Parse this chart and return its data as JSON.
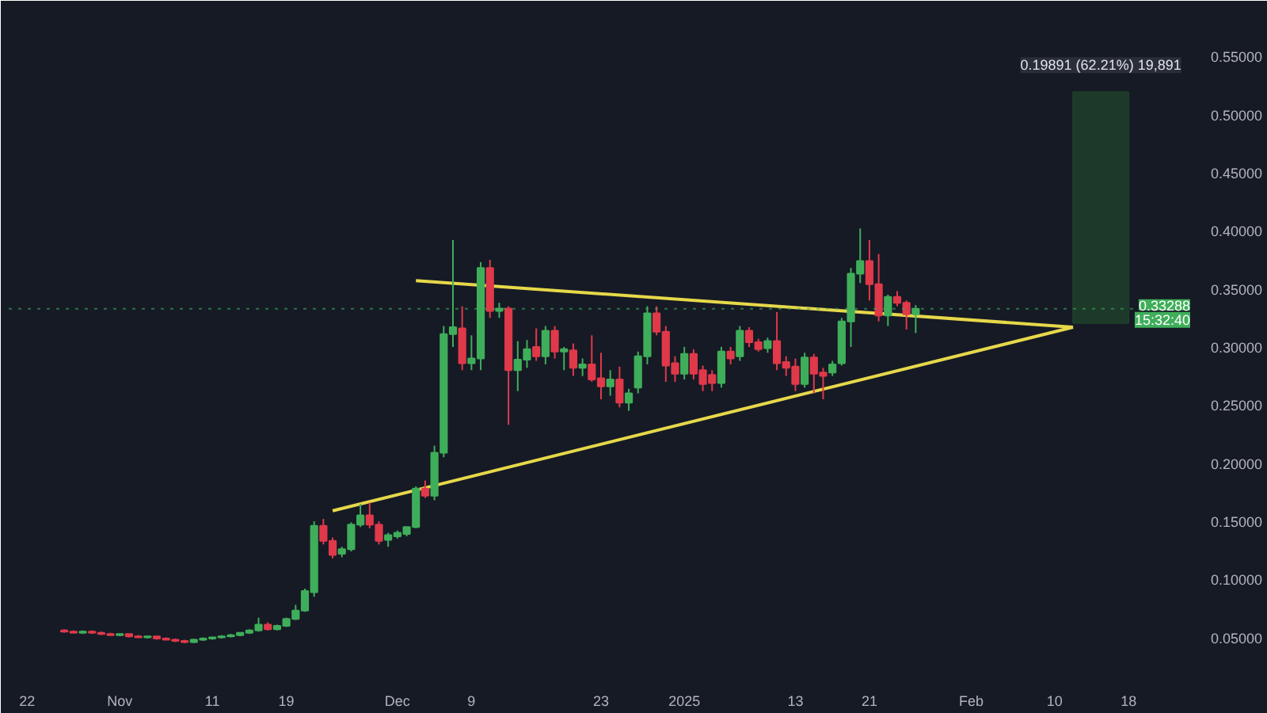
{
  "chart_data": {
    "type": "candlestick",
    "x": [
      "2024-10-26",
      "2024-10-27",
      "2024-10-28",
      "2024-10-29",
      "2024-10-30",
      "2024-10-31",
      "2024-11-01",
      "2024-11-02",
      "2024-11-03",
      "2024-11-04",
      "2024-11-05",
      "2024-11-06",
      "2024-11-07",
      "2024-11-08",
      "2024-11-09",
      "2024-11-10",
      "2024-11-11",
      "2024-11-12",
      "2024-11-13",
      "2024-11-14",
      "2024-11-15",
      "2024-11-16",
      "2024-11-17",
      "2024-11-18",
      "2024-11-19",
      "2024-11-20",
      "2024-11-21",
      "2024-11-22",
      "2024-11-23",
      "2024-11-24",
      "2024-11-25",
      "2024-11-26",
      "2024-11-27",
      "2024-11-28",
      "2024-11-29",
      "2024-11-30",
      "2024-12-01",
      "2024-12-02",
      "2024-12-03",
      "2024-12-04",
      "2024-12-05",
      "2024-12-06",
      "2024-12-07",
      "2024-12-08",
      "2024-12-09",
      "2024-12-10",
      "2024-12-11",
      "2024-12-12",
      "2024-12-13",
      "2024-12-14",
      "2024-12-15",
      "2024-12-16",
      "2024-12-17",
      "2024-12-18",
      "2024-12-19",
      "2024-12-20",
      "2024-12-21",
      "2024-12-22",
      "2024-12-23",
      "2024-12-24",
      "2024-12-25",
      "2024-12-26",
      "2024-12-27",
      "2024-12-28",
      "2024-12-29",
      "2024-12-30",
      "2024-12-31",
      "2025-01-01",
      "2025-01-02",
      "2025-01-03",
      "2025-01-04",
      "2025-01-05",
      "2025-01-06",
      "2025-01-07",
      "2025-01-08",
      "2025-01-09",
      "2025-01-10",
      "2025-01-11",
      "2025-01-12",
      "2025-01-13",
      "2025-01-14",
      "2025-01-15",
      "2025-01-16",
      "2025-01-17",
      "2025-01-18",
      "2025-01-19",
      "2025-01-20",
      "2025-01-21",
      "2025-01-22",
      "2025-01-23",
      "2025-01-24",
      "2025-01-25",
      "2025-01-26"
    ],
    "ohlc": [
      [
        0.056,
        0.057,
        0.054,
        0.055
      ],
      [
        0.055,
        0.056,
        0.054,
        0.054
      ],
      [
        0.054,
        0.056,
        0.053,
        0.055
      ],
      [
        0.055,
        0.056,
        0.053,
        0.054
      ],
      [
        0.054,
        0.055,
        0.052,
        0.053
      ],
      [
        0.053,
        0.054,
        0.052,
        0.052
      ],
      [
        0.052,
        0.053,
        0.051,
        0.053
      ],
      [
        0.053,
        0.053,
        0.05,
        0.051
      ],
      [
        0.051,
        0.052,
        0.05,
        0.05
      ],
      [
        0.05,
        0.051,
        0.049,
        0.051
      ],
      [
        0.051,
        0.051,
        0.048,
        0.049
      ],
      [
        0.049,
        0.05,
        0.048,
        0.048
      ],
      [
        0.048,
        0.049,
        0.046,
        0.047
      ],
      [
        0.047,
        0.048,
        0.045,
        0.046
      ],
      [
        0.046,
        0.049,
        0.045,
        0.048
      ],
      [
        0.048,
        0.05,
        0.047,
        0.049
      ],
      [
        0.049,
        0.05,
        0.048,
        0.05
      ],
      [
        0.05,
        0.052,
        0.049,
        0.051
      ],
      [
        0.051,
        0.053,
        0.05,
        0.052
      ],
      [
        0.052,
        0.054,
        0.051,
        0.054
      ],
      [
        0.054,
        0.057,
        0.053,
        0.056
      ],
      [
        0.056,
        0.067,
        0.055,
        0.061
      ],
      [
        0.061,
        0.063,
        0.056,
        0.057
      ],
      [
        0.057,
        0.061,
        0.056,
        0.06
      ],
      [
        0.06,
        0.067,
        0.059,
        0.066
      ],
      [
        0.066,
        0.078,
        0.065,
        0.073
      ],
      [
        0.073,
        0.092,
        0.072,
        0.09
      ],
      [
        0.089,
        0.15,
        0.085,
        0.146
      ],
      [
        0.146,
        0.152,
        0.13,
        0.133
      ],
      [
        0.133,
        0.136,
        0.118,
        0.121
      ],
      [
        0.122,
        0.128,
        0.119,
        0.126
      ],
      [
        0.126,
        0.149,
        0.124,
        0.147
      ],
      [
        0.147,
        0.165,
        0.145,
        0.155
      ],
      [
        0.155,
        0.166,
        0.144,
        0.147
      ],
      [
        0.147,
        0.15,
        0.13,
        0.133
      ],
      [
        0.134,
        0.14,
        0.128,
        0.138
      ],
      [
        0.137,
        0.142,
        0.135,
        0.14
      ],
      [
        0.139,
        0.145,
        0.137,
        0.145
      ],
      [
        0.145,
        0.18,
        0.144,
        0.178
      ],
      [
        0.178,
        0.185,
        0.17,
        0.172
      ],
      [
        0.172,
        0.215,
        0.168,
        0.209
      ],
      [
        0.209,
        0.318,
        0.205,
        0.311
      ],
      [
        0.311,
        0.392,
        0.3,
        0.317
      ],
      [
        0.316,
        0.335,
        0.28,
        0.286
      ],
      [
        0.286,
        0.31,
        0.28,
        0.29
      ],
      [
        0.29,
        0.373,
        0.28,
        0.368
      ],
      [
        0.368,
        0.375,
        0.325,
        0.331
      ],
      [
        0.331,
        0.338,
        0.325,
        0.333
      ],
      [
        0.333,
        0.335,
        0.233,
        0.28
      ],
      [
        0.28,
        0.305,
        0.262,
        0.289
      ],
      [
        0.289,
        0.306,
        0.282,
        0.298
      ],
      [
        0.3,
        0.316,
        0.288,
        0.292
      ],
      [
        0.292,
        0.318,
        0.285,
        0.314
      ],
      [
        0.314,
        0.318,
        0.29,
        0.296
      ],
      [
        0.296,
        0.3,
        0.28,
        0.298
      ],
      [
        0.297,
        0.303,
        0.275,
        0.282
      ],
      [
        0.282,
        0.29,
        0.275,
        0.285
      ],
      [
        0.285,
        0.31,
        0.27,
        0.272
      ],
      [
        0.273,
        0.295,
        0.255,
        0.266
      ],
      [
        0.266,
        0.28,
        0.258,
        0.272
      ],
      [
        0.272,
        0.283,
        0.248,
        0.252
      ],
      [
        0.252,
        0.264,
        0.245,
        0.26
      ],
      [
        0.265,
        0.296,
        0.26,
        0.292
      ],
      [
        0.292,
        0.335,
        0.285,
        0.329
      ],
      [
        0.329,
        0.335,
        0.31,
        0.313
      ],
      [
        0.313,
        0.318,
        0.27,
        0.284
      ],
      [
        0.286,
        0.292,
        0.27,
        0.277
      ],
      [
        0.277,
        0.3,
        0.272,
        0.294
      ],
      [
        0.294,
        0.298,
        0.272,
        0.277
      ],
      [
        0.28,
        0.284,
        0.262,
        0.268
      ],
      [
        0.276,
        0.28,
        0.262,
        0.269
      ],
      [
        0.269,
        0.3,
        0.265,
        0.296
      ],
      [
        0.296,
        0.3,
        0.285,
        0.29
      ],
      [
        0.292,
        0.318,
        0.288,
        0.314
      ],
      [
        0.314,
        0.317,
        0.3,
        0.304
      ],
      [
        0.304,
        0.307,
        0.296,
        0.298
      ],
      [
        0.299,
        0.308,
        0.295,
        0.305
      ],
      [
        0.305,
        0.33,
        0.28,
        0.286
      ],
      [
        0.287,
        0.292,
        0.275,
        0.282
      ],
      [
        0.283,
        0.29,
        0.262,
        0.268
      ],
      [
        0.268,
        0.295,
        0.265,
        0.291
      ],
      [
        0.291,
        0.294,
        0.26,
        0.277
      ],
      [
        0.278,
        0.282,
        0.255,
        0.275
      ],
      [
        0.278,
        0.288,
        0.275,
        0.285
      ],
      [
        0.286,
        0.325,
        0.284,
        0.322
      ],
      [
        0.322,
        0.368,
        0.3,
        0.363
      ],
      [
        0.363,
        0.402,
        0.355,
        0.374
      ],
      [
        0.374,
        0.392,
        0.34,
        0.354
      ],
      [
        0.354,
        0.38,
        0.322,
        0.327
      ],
      [
        0.327,
        0.345,
        0.318,
        0.343
      ],
      [
        0.343,
        0.348,
        0.335,
        0.338
      ],
      [
        0.338,
        0.34,
        0.315,
        0.328
      ],
      [
        0.328,
        0.336,
        0.312,
        0.33288
      ]
    ],
    "colors": [
      "#e0394a",
      "#e0394a",
      "#3fae5a",
      "#e0394a",
      "#e0394a",
      "#e0394a",
      "#3fae5a",
      "#e0394a",
      "#e0394a",
      "#3fae5a",
      "#e0394a",
      "#e0394a",
      "#e0394a",
      "#e0394a",
      "#3fae5a",
      "#3fae5a",
      "#3fae5a",
      "#3fae5a",
      "#3fae5a",
      "#3fae5a",
      "#3fae5a",
      "#3fae5a",
      "#e0394a",
      "#3fae5a",
      "#3fae5a",
      "#3fae5a",
      "#3fae5a",
      "#3fae5a",
      "#e0394a",
      "#e0394a",
      "#3fae5a",
      "#3fae5a",
      "#3fae5a",
      "#e0394a",
      "#e0394a",
      "#3fae5a",
      "#3fae5a",
      "#3fae5a",
      "#3fae5a",
      "#e0394a",
      "#3fae5a",
      "#3fae5a",
      "#3fae5a",
      "#e0394a",
      "#3fae5a",
      "#3fae5a",
      "#e0394a",
      "#3fae5a",
      "#e0394a",
      "#3fae5a",
      "#3fae5a",
      "#e0394a",
      "#3fae5a",
      "#e0394a",
      "#3fae5a",
      "#e0394a",
      "#3fae5a",
      "#e0394a",
      "#e0394a",
      "#3fae5a",
      "#e0394a",
      "#3fae5a",
      "#3fae5a",
      "#3fae5a",
      "#e0394a",
      "#e0394a",
      "#e0394a",
      "#3fae5a",
      "#e0394a",
      "#e0394a",
      "#e0394a",
      "#3fae5a",
      "#e0394a",
      "#3fae5a",
      "#e0394a",
      "#e0394a",
      "#3fae5a",
      "#e0394a",
      "#e0394a",
      "#e0394a",
      "#3fae5a",
      "#e0394a",
      "#e0394a",
      "#3fae5a",
      "#3fae5a",
      "#3fae5a",
      "#3fae5a",
      "#e0394a",
      "#e0394a",
      "#3fae5a",
      "#e0394a",
      "#e0394a",
      "#3fae5a"
    ],
    "series": [
      {
        "type": "line",
        "color": "#e6d84a",
        "x": [
          "2024-12-03",
          "2025-02-12"
        ],
        "values": [
          0.357,
          0.317
        ]
      },
      {
        "type": "line",
        "color": "#e6d84a",
        "x": [
          "2024-11-24",
          "2025-02-12"
        ],
        "values": [
          0.159,
          0.317
        ]
      },
      {
        "type": "bar",
        "color": "#1e3d2a",
        "x": [
          "2025-02-15"
        ],
        "values": [
          0.19891
        ],
        "base": [
          0.3205
        ]
      }
    ],
    "xlim": [
      "2024-10-20",
      "2025-02-25"
    ],
    "xticks": [
      {
        "value": "2024-10-22",
        "label": "22"
      },
      {
        "value": "2024-11-01",
        "label": "Nov"
      },
      {
        "value": "2024-11-11",
        "label": "11"
      },
      {
        "value": "2024-11-19",
        "label": "19"
      },
      {
        "value": "2024-12-01",
        "label": "Dec"
      },
      {
        "value": "2024-12-09",
        "label": "9"
      },
      {
        "value": "2024-12-23",
        "label": "23"
      },
      {
        "value": "2025-01-01",
        "label": "2025"
      },
      {
        "value": "2025-01-13",
        "label": "13"
      },
      {
        "value": "2025-01-21",
        "label": "21"
      },
      {
        "value": "2025-02-01",
        "label": "Feb"
      },
      {
        "value": "2025-02-10",
        "label": "10"
      },
      {
        "value": "2025-02-18",
        "label": "18"
      }
    ],
    "ylim": [
      0.017,
      0.587
    ],
    "yticks": [
      {
        "value": 0.05,
        "label": "0.05000"
      },
      {
        "value": 0.1,
        "label": "0.10000"
      },
      {
        "value": 0.15,
        "label": "0.15000"
      },
      {
        "value": 0.2,
        "label": "0.20000"
      },
      {
        "value": 0.25,
        "label": "0.25000"
      },
      {
        "value": 0.3,
        "label": "0.30000"
      },
      {
        "value": 0.35,
        "label": "0.35000"
      },
      {
        "value": 0.4,
        "label": "0.40000"
      },
      {
        "value": 0.45,
        "label": "0.45000"
      },
      {
        "value": 0.5,
        "label": "0.50000"
      },
      {
        "value": 0.55,
        "label": "0.55000"
      }
    ],
    "ref_lines": [
      {
        "axis": "y",
        "value": 0.33288,
        "label": "0.33288",
        "color": "#3fae5a",
        "line_style": "dotted"
      }
    ],
    "annotations": [
      "15:32:40",
      {
        "text": "0.19891 (62.21%) 19,891",
        "x": "2025-02-15",
        "y": 0.51941
      }
    ],
    "grid": false
  }
}
